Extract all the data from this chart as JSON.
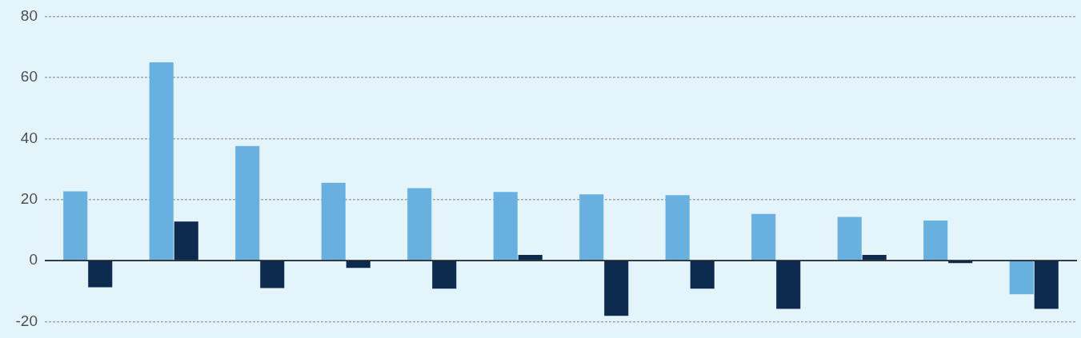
{
  "chart_data": {
    "type": "bar",
    "categories": [
      null,
      null,
      null,
      null,
      null,
      null,
      null,
      null,
      null,
      null,
      null,
      null
    ],
    "series": [
      {
        "color": "#67b0e0",
        "values": [
          22.7,
          64.9,
          37.5,
          25.5,
          23.7,
          22.5,
          21.7,
          21.4,
          15.3,
          14.3,
          13.1,
          -11.0
        ]
      },
      {
        "color": "#0d2a4f",
        "values": [
          -8.7,
          12.8,
          -9.0,
          -2.4,
          -9.2,
          1.9,
          -18.1,
          -9.2,
          -15.8,
          1.9,
          -0.8,
          -15.8
        ]
      }
    ],
    "ylim": [
      -20,
      80
    ],
    "yticks": [
      -20,
      0,
      20,
      40,
      60,
      80
    ],
    "grid": "y",
    "tick_labels": "y"
  }
}
